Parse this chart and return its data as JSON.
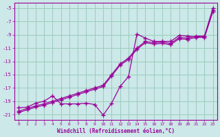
{
  "xlabel": "Windchill (Refroidissement éolien,°C)",
  "bg_color": "#cce8e8",
  "line_color": "#990099",
  "grid_color": "#99ccbb",
  "xlim": [
    -0.5,
    23.5
  ],
  "ylim": [
    -21.8,
    -4.2
  ],
  "yticks": [
    -5,
    -7,
    -9,
    -11,
    -13,
    -15,
    -17,
    -19,
    -21
  ],
  "xticks": [
    0,
    1,
    2,
    3,
    4,
    5,
    6,
    7,
    8,
    9,
    10,
    11,
    12,
    13,
    14,
    15,
    16,
    17,
    18,
    19,
    20,
    21,
    22,
    23
  ],
  "series_diagonal1_x": [
    0,
    1,
    2,
    3,
    4,
    5,
    6,
    7,
    8,
    9,
    10,
    11,
    12,
    13,
    14,
    15,
    16,
    17,
    18,
    19,
    20,
    21,
    22,
    23
  ],
  "series_diagonal1_y": [
    -20.5,
    -20.1,
    -19.7,
    -19.4,
    -19.0,
    -18.6,
    -18.2,
    -17.8,
    -17.4,
    -17.0,
    -16.6,
    -15.0,
    -13.4,
    -12.5,
    -11.0,
    -10.0,
    -10.2,
    -10.1,
    -10.3,
    -9.4,
    -9.5,
    -9.2,
    -9.2,
    -5.3
  ],
  "series_diagonal2_x": [
    0,
    1,
    2,
    3,
    4,
    5,
    6,
    7,
    8,
    9,
    10,
    11,
    12,
    13,
    14,
    15,
    16,
    17,
    18,
    19,
    20,
    21,
    22,
    23
  ],
  "series_diagonal2_y": [
    -20.7,
    -20.3,
    -19.9,
    -19.6,
    -19.2,
    -18.8,
    -18.4,
    -18.0,
    -17.6,
    -17.2,
    -16.8,
    -15.2,
    -13.6,
    -12.7,
    -11.2,
    -10.2,
    -10.4,
    -10.3,
    -10.5,
    -9.6,
    -9.7,
    -9.4,
    -9.4,
    -5.5
  ],
  "series_jagged_x": [
    0,
    1,
    2,
    3,
    4,
    5,
    6,
    7,
    8,
    9,
    10,
    11,
    12,
    13,
    14,
    15,
    16,
    17,
    18,
    19,
    20,
    21,
    22,
    23
  ],
  "series_jagged_y": [
    -20.0,
    -19.9,
    -19.3,
    -19.0,
    -18.2,
    -19.4,
    -19.4,
    -19.4,
    -19.3,
    -19.5,
    -21.1,
    -19.3,
    -16.8,
    -15.3,
    -8.9,
    -9.5,
    -10.0,
    -10.0,
    -10.0,
    -9.1,
    -9.2,
    -9.3,
    -9.2,
    -5.0
  ]
}
